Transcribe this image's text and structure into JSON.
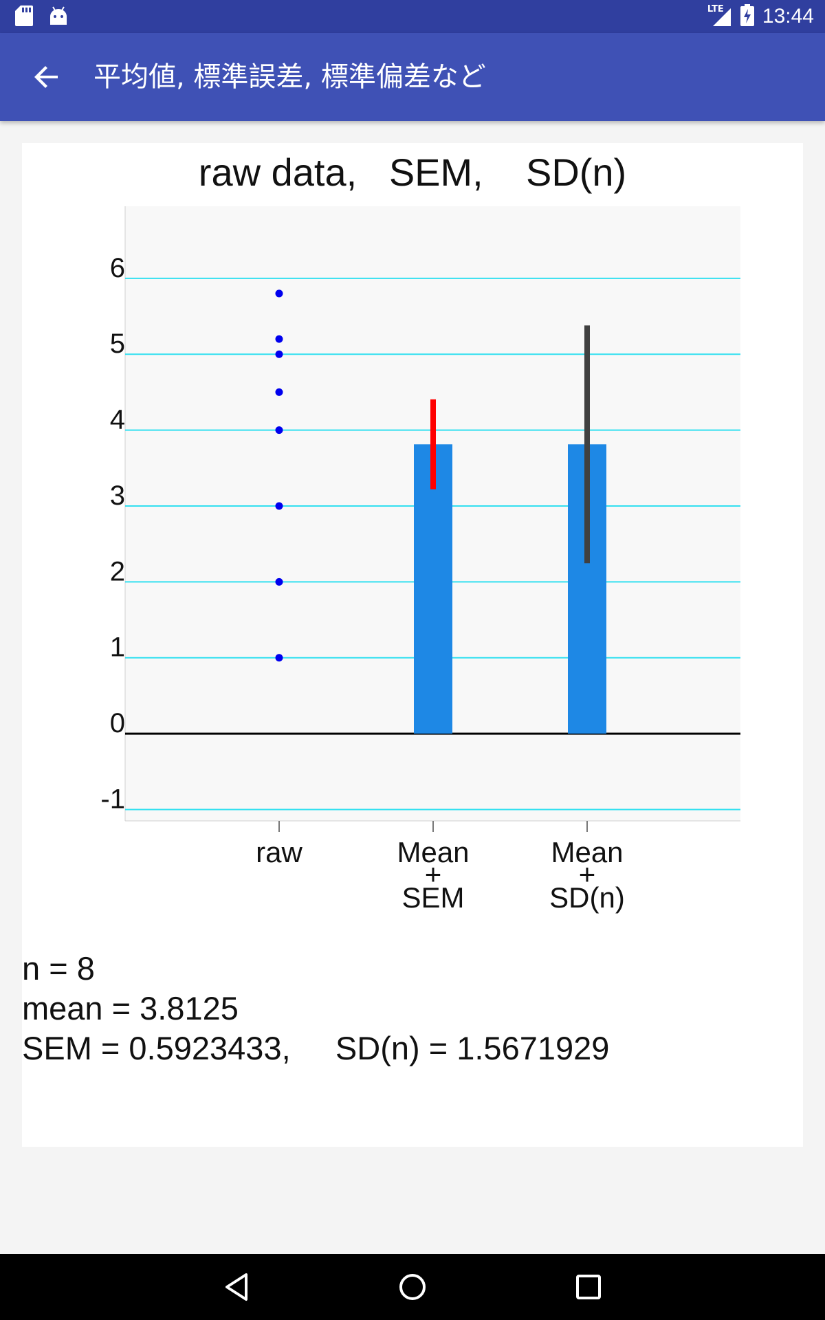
{
  "status_bar": {
    "left_icons": [
      "sd-card-icon",
      "android-icon"
    ],
    "network_label": "LTE",
    "time": "13:44"
  },
  "app_bar": {
    "title": "平均値, 標準誤差, 標準偏差など",
    "back_icon": "arrow-back-icon"
  },
  "chart_data": {
    "type": "bar",
    "title": "raw data,   SEM,    SD(n)",
    "xlabel": "",
    "ylabel": "",
    "ylim": [
      -1.15,
      6.95
    ],
    "y_ticks": [
      -1,
      0,
      1,
      2,
      3,
      4,
      5,
      6
    ],
    "grid": true,
    "categories": [
      "raw",
      "Mean\n+\nSEM",
      "Mean\n+\nSD(n)"
    ],
    "category_labels": [
      {
        "line1": "raw",
        "line2": "",
        "line3": ""
      },
      {
        "line1": "Mean",
        "line2": "+",
        "line3": "SEM"
      },
      {
        "line1": "Mean",
        "line2": "+",
        "line3": "SD(n)"
      }
    ],
    "raw_points": [
      1,
      2,
      3,
      4,
      4.5,
      5,
      5.2,
      5.8
    ],
    "bars": [
      {
        "category": "Mean + SEM",
        "value": 3.8125,
        "error": 0.5923433,
        "error_color": "#ff0000"
      },
      {
        "category": "Mean + SD(n)",
        "value": 3.8125,
        "error": 1.5671929,
        "error_color": "#404040"
      }
    ],
    "colors": {
      "bar": "#1e88e5",
      "point": "#0000ee",
      "grid": "#33e0f0",
      "zero_line": "#000000",
      "plot_bg": "#f8f8f8"
    }
  },
  "stats": {
    "n_line": "n = 8",
    "mean_line": "mean = 3.8125",
    "sem_sd_line": "SEM = 0.5923433,     SD(n) = 1.5671929"
  },
  "nav_bar": {
    "back_icon": "nav-back-icon",
    "home_icon": "nav-home-icon",
    "recents_icon": "nav-recents-icon"
  }
}
